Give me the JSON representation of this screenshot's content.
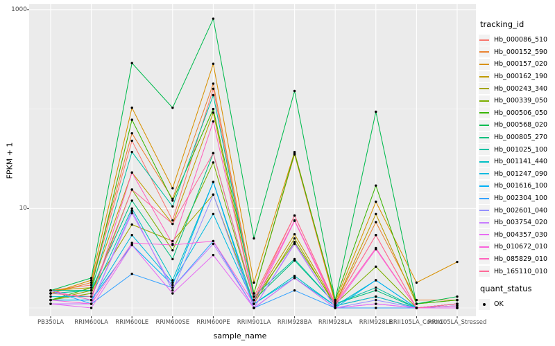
{
  "chart_data": {
    "type": "line",
    "title": "",
    "xlabel": "sample_name",
    "ylabel": "FPKM + 1",
    "y_scale": "log10",
    "ylim": [
      1,
      1000
    ],
    "grid": true,
    "legend_position": "right",
    "y_tick_labels": [
      "1000",
      "10"
    ],
    "y_tick_values": [
      1000,
      10
    ],
    "y_major_gridlines": [
      1000,
      10
    ],
    "y_minor_gridlines": [
      100,
      1
    ],
    "categories": [
      "PB350LA",
      "RRIM600LA",
      "RRIM600LE",
      "RRIM600SE",
      "RRIM600PE",
      "RRIM901LA",
      "RRIM928BA",
      "RRIM928LA",
      "RRIM928LE",
      "RRII105LA_Control",
      "RRII105LA_Stressed"
    ],
    "series": [
      {
        "name": "Hb_000086_510",
        "color": "#F8766D",
        "values": [
          1.5,
          1.7,
          48,
          7.6,
          160,
          1.3,
          8.5,
          1.1,
          5.4,
          1.0,
          1.1
        ]
      },
      {
        "name": "Hb_000152_590",
        "color": "#EA8331",
        "values": [
          1.4,
          1.8,
          57,
          12.5,
          180,
          1.4,
          35,
          1.1,
          7.3,
          1.2,
          1.2
        ]
      },
      {
        "name": "Hb_000157_020",
        "color": "#D89000",
        "values": [
          1.4,
          1.9,
          103,
          16,
          285,
          1.8,
          37,
          1.15,
          11.7,
          1.8,
          2.9
        ]
      },
      {
        "name": "Hb_000162_190",
        "color": "#C09B00",
        "values": [
          1.5,
          1.6,
          23,
          7.0,
          92,
          1.2,
          5.5,
          1.1,
          8.8,
          1.1,
          1.2
        ]
      },
      {
        "name": "Hb_000243_340",
        "color": "#A3A500",
        "values": [
          1.2,
          1.5,
          6.9,
          4.7,
          13.8,
          1.1,
          5.0,
          1.05,
          1.3,
          1.0,
          1.1
        ]
      },
      {
        "name": "Hb_000339_050",
        "color": "#7CAE00",
        "values": [
          1.2,
          1.4,
          15.5,
          3.8,
          29,
          1.2,
          4.6,
          1.1,
          2.6,
          1.0,
          1.1
        ]
      },
      {
        "name": "Hb_000506_050",
        "color": "#39B600",
        "values": [
          1.2,
          1.6,
          78,
          12,
          100,
          1.4,
          36,
          1.2,
          17,
          1.1,
          1.2
        ]
      },
      {
        "name": "Hb_000568_020",
        "color": "#00BB4E",
        "values": [
          1.5,
          2.0,
          290,
          103,
          810,
          5.0,
          152,
          1.2,
          94,
          1.1,
          1.3
        ]
      },
      {
        "name": "Hb_000805_270",
        "color": "#00BF7D",
        "values": [
          1.5,
          1.5,
          12,
          3.1,
          36,
          1.2,
          3.0,
          1.1,
          1.5,
          1.0,
          1.1
        ]
      },
      {
        "name": "Hb_001025_100",
        "color": "#00C1A3",
        "values": [
          1.4,
          1.5,
          37,
          10.5,
          138,
          1.3,
          3.1,
          1.1,
          1.6,
          1.0,
          1.1
        ]
      },
      {
        "name": "Hb_001141_440",
        "color": "#00BFC4",
        "values": [
          1.3,
          1.3,
          10,
          1.9,
          18.5,
          1.1,
          2.1,
          1.05,
          1.9,
          1.0,
          1.05
        ]
      },
      {
        "name": "Hb_001247_090",
        "color": "#00BAE0",
        "values": [
          1.2,
          1.2,
          5.4,
          1.8,
          8.8,
          1.1,
          2.0,
          1.05,
          1.3,
          1.0,
          1.05
        ]
      },
      {
        "name": "Hb_001616_100",
        "color": "#00B0F6",
        "values": [
          1.2,
          1.2,
          4.3,
          1.7,
          18.5,
          1.0,
          2.0,
          1.0,
          1.9,
          1.0,
          1.0
        ]
      },
      {
        "name": "Hb_002304_100",
        "color": "#35A2FF",
        "values": [
          1.5,
          1.1,
          2.2,
          1.6,
          4.7,
          1.0,
          1.5,
          1.0,
          1.0,
          1.0,
          1.0
        ]
      },
      {
        "name": "Hb_002601_040",
        "color": "#9590FF",
        "values": [
          1.1,
          1.1,
          9.5,
          1.5,
          13.8,
          1.0,
          4.5,
          1.0,
          1.2,
          1.0,
          1.0
        ]
      },
      {
        "name": "Hb_003754_020",
        "color": "#C77CFF",
        "values": [
          1.1,
          1.1,
          9.0,
          1.6,
          4.4,
          1.0,
          4.4,
          1.0,
          1.1,
          1.0,
          1.0
        ]
      },
      {
        "name": "Hb_004357_030",
        "color": "#E76BF3",
        "values": [
          1.1,
          1.0,
          4.3,
          1.4,
          3.4,
          1.0,
          2.0,
          1.0,
          1.1,
          1.0,
          1.0
        ]
      },
      {
        "name": "Hb_010672_010",
        "color": "#FA62DB",
        "values": [
          1.2,
          1.1,
          4.5,
          4.3,
          4.7,
          1.1,
          7.5,
          1.05,
          3.9,
          1.0,
          1.05
        ]
      },
      {
        "name": "Hb_085829_010",
        "color": "#FF62BC",
        "values": [
          1.5,
          1.2,
          23,
          4.4,
          75,
          1.2,
          7.6,
          1.1,
          4.0,
          1.0,
          1.1
        ]
      },
      {
        "name": "Hb_165110_010",
        "color": "#FF6A98",
        "values": [
          1.4,
          1.3,
          15.5,
          7.0,
          36,
          1.2,
          8.5,
          1.1,
          5.4,
          1.0,
          1.1
        ]
      }
    ]
  },
  "legend": {
    "tracking_title": "tracking_id",
    "quant_title": "quant_status",
    "quant_items": [
      {
        "label": "OK",
        "marker": "point-icon",
        "color": "#000000"
      }
    ]
  },
  "colors": {
    "panel_bg": "#EBEBEB",
    "grid": "#FFFFFF",
    "tick": "#333333",
    "tick_label": "#4D4D4D",
    "point": "#000000",
    "legend_key_bg": "#F2F2F2"
  }
}
